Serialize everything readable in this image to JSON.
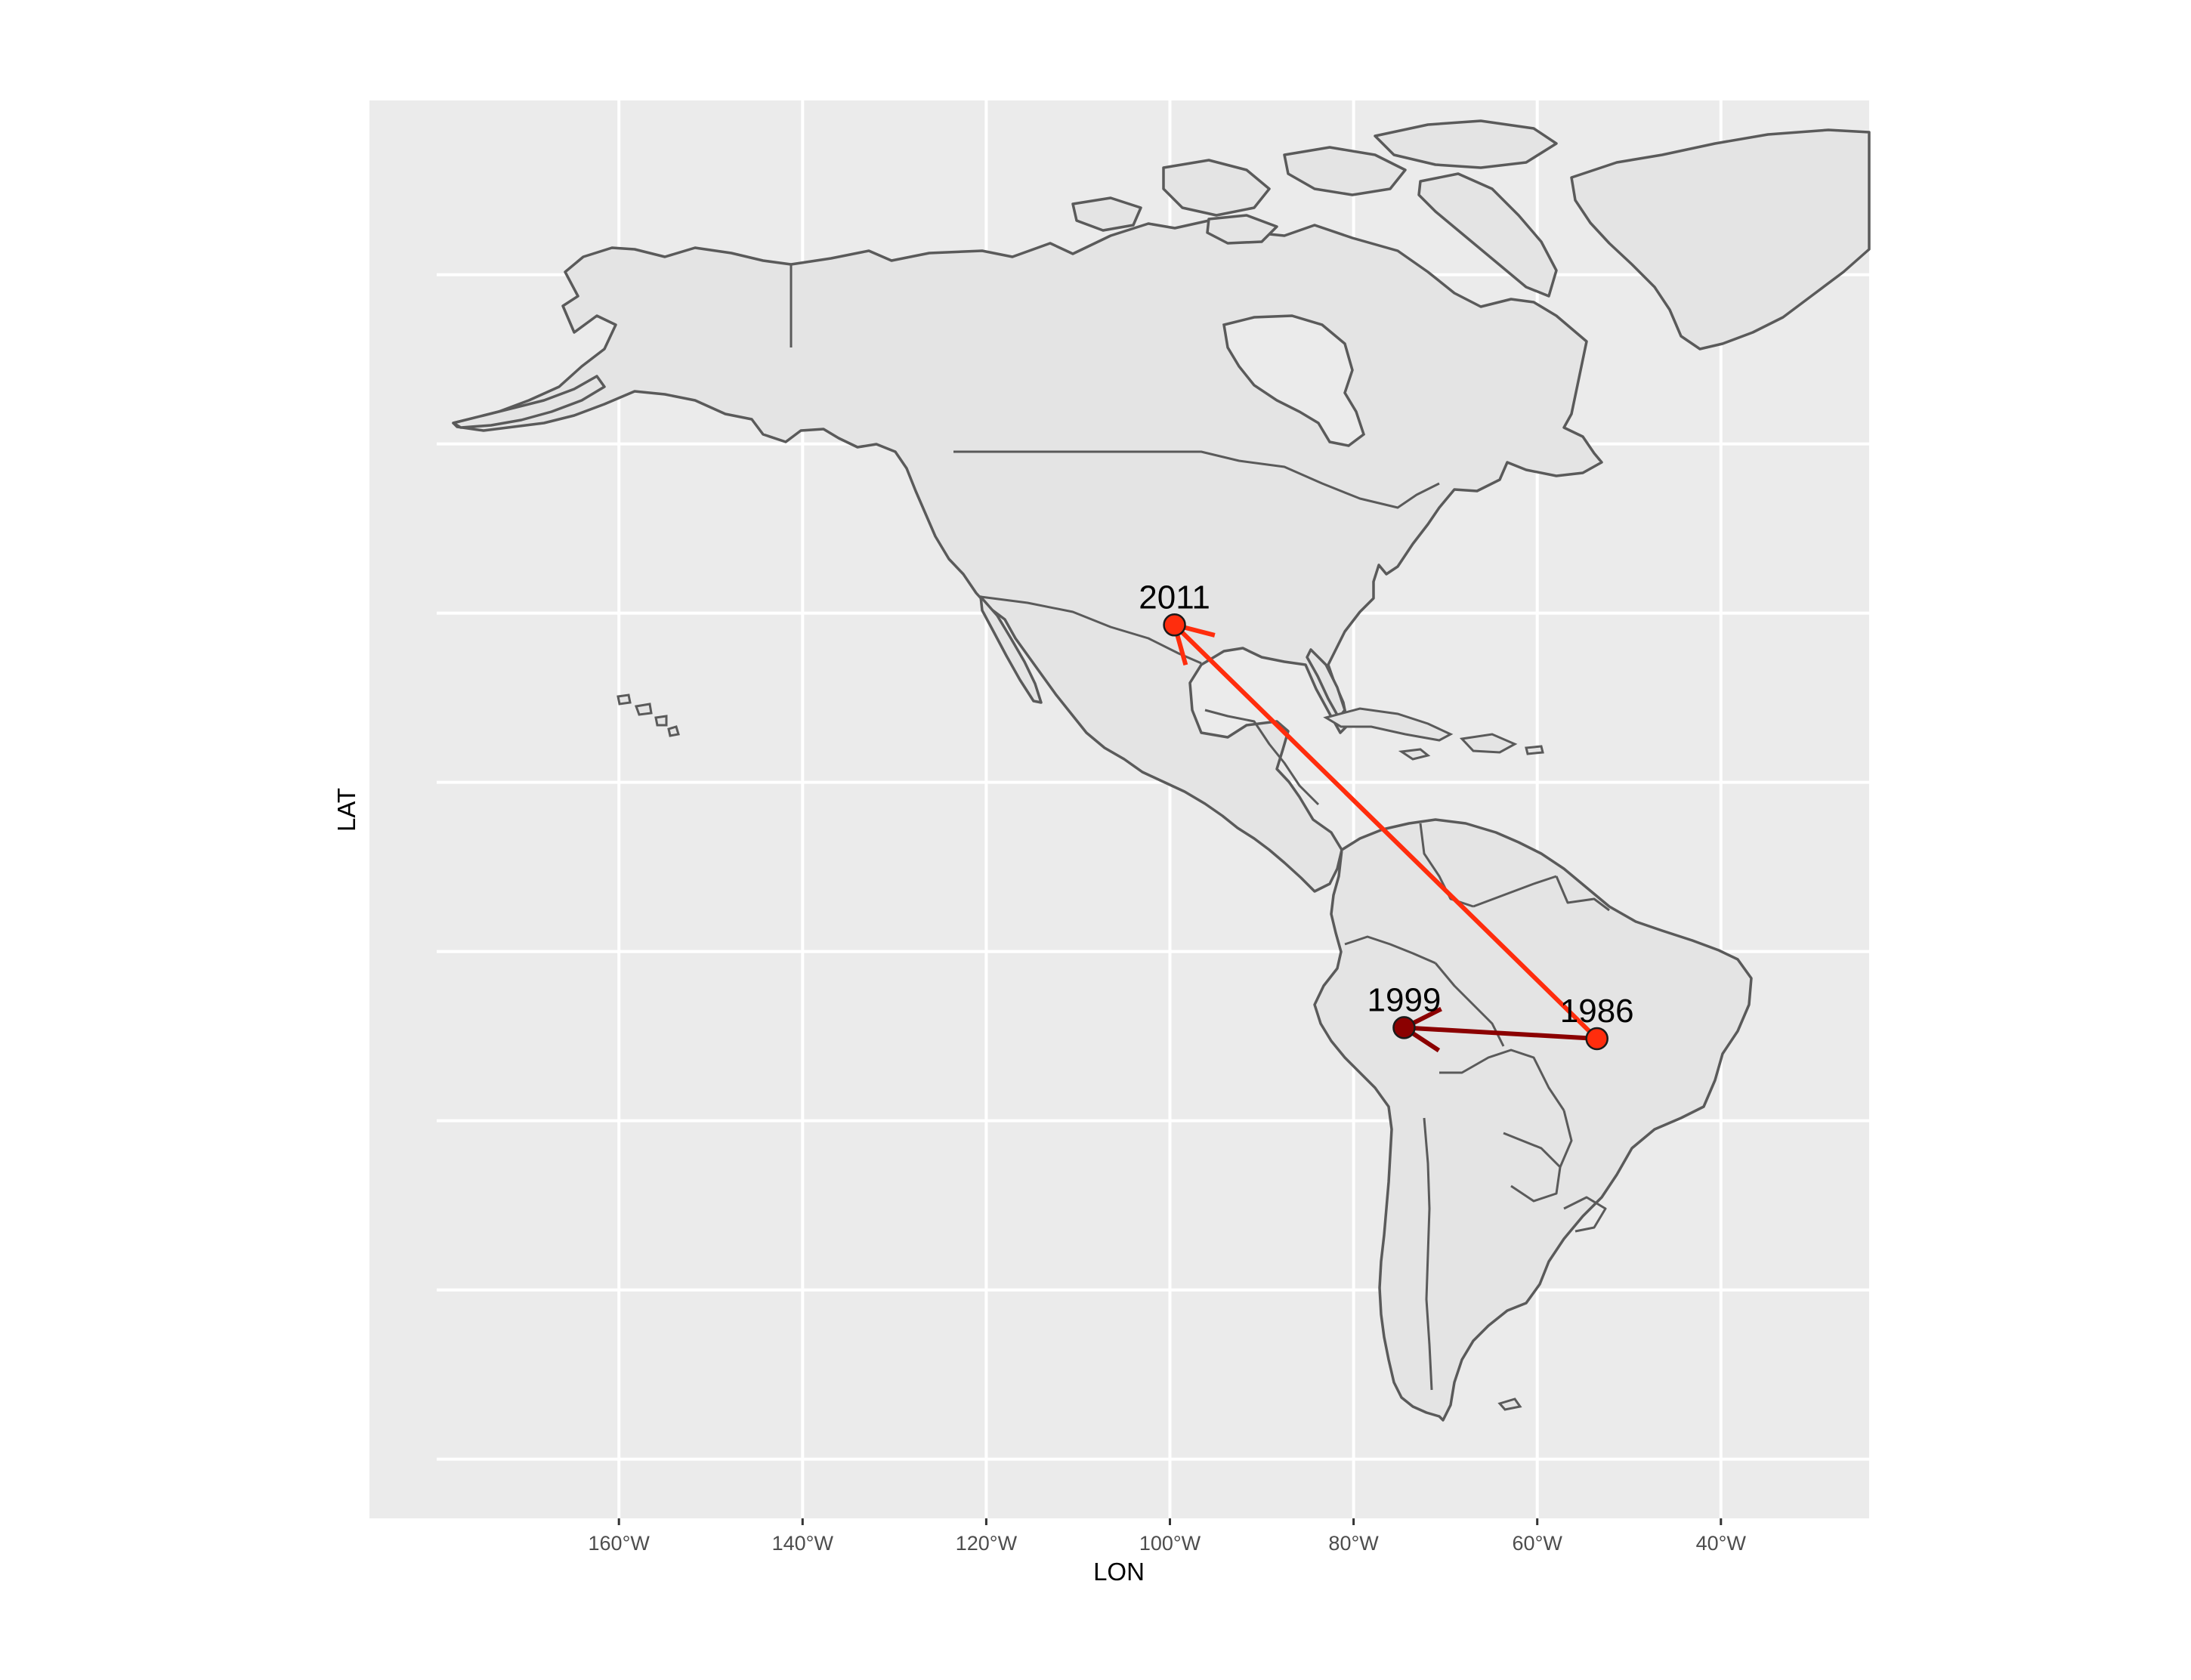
{
  "map": {
    "xlabel": "LON",
    "ylabel": "LAT",
    "x_ticks": [
      "160°W",
      "140°W",
      "120°W",
      "100°W",
      "80°W",
      "60°W",
      "40°W"
    ],
    "x_tick_values": [
      -160,
      -140,
      -120,
      -100,
      -80,
      -60,
      -40
    ],
    "lat_gridlines": [
      80,
      60,
      40,
      20,
      0,
      -20,
      -40,
      -60
    ],
    "xlim": [
      -180,
      -18
    ],
    "ylim": [
      -67,
      86
    ],
    "grid": true
  },
  "chart_data": {
    "type": "scatter",
    "xlabel": "LON",
    "ylabel": "LAT",
    "xlim": [
      -180,
      -18
    ],
    "ylim": [
      -67,
      86
    ],
    "points": [
      {
        "label": "1986",
        "lon": -53.5,
        "lat": -10.3,
        "color": "#ff2d0d"
      },
      {
        "label": "1999",
        "lon": -74.5,
        "lat": -9.0,
        "color": "#8b0000"
      },
      {
        "label": "2011",
        "lon": -99.5,
        "lat": 38.6,
        "color": "#ff2d0d"
      }
    ],
    "arrows": [
      {
        "from": "1986",
        "to": "1999",
        "color": "#8b0000"
      },
      {
        "from": "1986",
        "to": "2011",
        "color": "#ff2d0d"
      }
    ]
  }
}
